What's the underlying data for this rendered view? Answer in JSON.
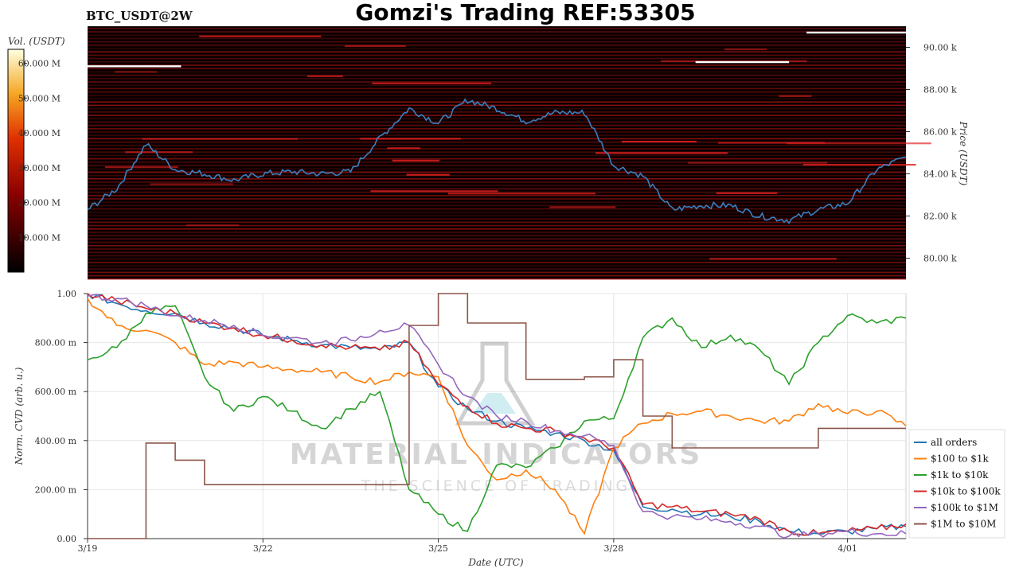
{
  "header": {
    "symbol": "BTC_USDT@2W",
    "title": "Gomzi's Trading REF:53305"
  },
  "watermark": {
    "main": "MATERIAL INDICATORS",
    "tagline": "THE SCIENCE OF TRADING"
  },
  "colorbar": {
    "label": "Vol. (USDT)",
    "ticks": [
      "60.000 M",
      "50.000 M",
      "40.000 M",
      "30.000 M",
      "20.000 M",
      "10.000 M"
    ]
  },
  "colors": {
    "all orders": "#1f77b4",
    "$100 to $1k": "#ff7f0e",
    "$1k to $10k": "#2ca02c",
    "$10k to $100k": "#d62728",
    "$100k to $1M": "#9467bd",
    "$1M to $10M": "#8c564b",
    "heatmap_bg": "#0a0000",
    "heat_low": "#8b0000",
    "heat_high": "#ffffff"
  },
  "chart_data": [
    {
      "type": "heatmap",
      "ylabel": "Price (USDT)",
      "yticks": [
        "90.00 k",
        "88.00 k",
        "86.00 k",
        "84.00 k",
        "82.00 k",
        "80.00 k"
      ],
      "ytick_values": [
        90000,
        88000,
        86000,
        84000,
        82000,
        80000
      ],
      "ylim": [
        79000,
        91000
      ],
      "xlim": [
        "3/19",
        "4/02"
      ],
      "price_line": {
        "name": "price",
        "x": [
          "3/19",
          "3/19.5",
          "3/20",
          "3/20.5",
          "3/21",
          "3/21.5",
          "3/22",
          "3/22.5",
          "3/23",
          "3/23.5",
          "3/24",
          "3/24.5",
          "3/25",
          "3/25.5",
          "3/26",
          "3/26.5",
          "3/27",
          "3/27.5",
          "3/28",
          "3/28.5",
          "3/29",
          "3/29.5",
          "3/30",
          "3/30.5",
          "3/31",
          "3/31.5",
          "4/01",
          "4/01.5",
          "4/02"
        ],
        "values": [
          82300,
          83300,
          85400,
          84200,
          84000,
          83700,
          84000,
          84100,
          84000,
          84100,
          85700,
          87100,
          86400,
          87500,
          87100,
          86500,
          86900,
          86900,
          84400,
          83900,
          82300,
          82500,
          82500,
          82000,
          81800,
          82300,
          82600,
          84200,
          84800
        ]
      },
      "walls": [
        {
          "from": "3/19",
          "to": "3/20.6",
          "price": 89100
        },
        {
          "from": "3/29.4",
          "to": "3/31",
          "price": 89300
        },
        {
          "from": "3/31.3",
          "to": "4/02",
          "price": 90700
        }
      ]
    },
    {
      "type": "line",
      "xlabel": "Date (UTC)",
      "ylabel": "Norm. CVD (arb. u.)",
      "xticks": [
        "3/19",
        "3/22",
        "3/25",
        "3/28",
        "4/01"
      ],
      "xtick_values": [
        0,
        3,
        6,
        9,
        13
      ],
      "yticks": [
        "1.00",
        "800.00 m",
        "600.00 m",
        "400.00 m",
        "200.00 m",
        "0.00"
      ],
      "ytick_values": [
        1.0,
        0.8,
        0.6,
        0.4,
        0.2,
        0.0
      ],
      "ylim": [
        0,
        1
      ],
      "legend_position": "right",
      "x": [
        0,
        0.5,
        1,
        1.5,
        2,
        2.5,
        3,
        3.5,
        4,
        4.5,
        5,
        5.5,
        6,
        6.5,
        7,
        7.5,
        8,
        8.5,
        9,
        9.5,
        10,
        10.5,
        11,
        11.5,
        12,
        12.5,
        13,
        13.5,
        14
      ],
      "series": [
        {
          "name": "all orders",
          "values": [
            1.0,
            0.96,
            0.93,
            0.92,
            0.88,
            0.86,
            0.83,
            0.81,
            0.79,
            0.78,
            0.77,
            0.8,
            0.62,
            0.53,
            0.48,
            0.45,
            0.43,
            0.4,
            0.36,
            0.13,
            0.12,
            0.1,
            0.09,
            0.07,
            0.03,
            0.02,
            0.03,
            0.04,
            0.05
          ]
        },
        {
          "name": "$100 to $1k",
          "values": [
            0.98,
            0.87,
            0.85,
            0.8,
            0.71,
            0.72,
            0.7,
            0.69,
            0.68,
            0.66,
            0.64,
            0.68,
            0.66,
            0.38,
            0.24,
            0.28,
            0.2,
            0.02,
            0.37,
            0.47,
            0.51,
            0.52,
            0.5,
            0.48,
            0.48,
            0.55,
            0.51,
            0.52,
            0.46
          ]
        },
        {
          "name": "$1k to $10k",
          "values": [
            0.73,
            0.78,
            0.92,
            0.95,
            0.66,
            0.52,
            0.58,
            0.52,
            0.45,
            0.53,
            0.6,
            0.2,
            0.1,
            0.03,
            0.3,
            0.29,
            0.37,
            0.48,
            0.49,
            0.82,
            0.9,
            0.78,
            0.83,
            0.77,
            0.63,
            0.8,
            0.91,
            0.88,
            0.9
          ]
        },
        {
          "name": "$10k to $100k",
          "values": [
            1.0,
            0.97,
            0.94,
            0.92,
            0.88,
            0.86,
            0.83,
            0.81,
            0.79,
            0.78,
            0.77,
            0.8,
            0.63,
            0.54,
            0.47,
            0.45,
            0.44,
            0.41,
            0.37,
            0.14,
            0.13,
            0.11,
            0.1,
            0.08,
            0.03,
            0.02,
            0.03,
            0.04,
            0.06
          ]
        },
        {
          "name": "$100k to $1M",
          "values": [
            0.99,
            0.98,
            0.95,
            0.91,
            0.89,
            0.87,
            0.83,
            0.82,
            0.8,
            0.81,
            0.85,
            0.87,
            0.71,
            0.58,
            0.5,
            0.48,
            0.44,
            0.42,
            0.38,
            0.11,
            0.09,
            0.08,
            0.07,
            0.05,
            0.01,
            0.02,
            0.03,
            0.02,
            0.02
          ]
        },
        {
          "name": "$1M to $10M",
          "values": [
            0.0,
            0.0,
            0.39,
            0.32,
            0.22,
            0.22,
            0.22,
            0.22,
            0.22,
            0.22,
            0.22,
            0.87,
            1.0,
            0.88,
            0.88,
            0.65,
            0.65,
            0.66,
            0.73,
            0.5,
            0.37,
            0.37,
            0.37,
            0.37,
            0.37,
            0.45,
            0.45,
            0.45,
            0.45
          ]
        }
      ]
    }
  ]
}
